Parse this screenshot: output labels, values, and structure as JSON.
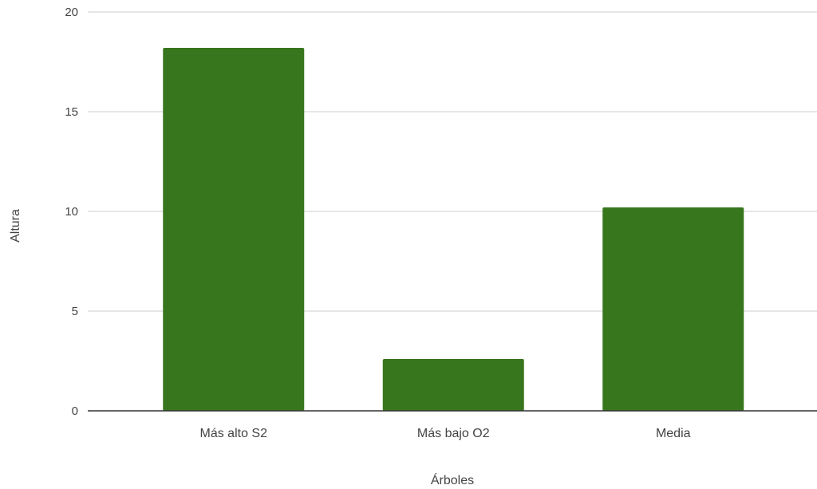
{
  "chart_data": {
    "type": "bar",
    "categories": [
      "Más alto S2",
      "Más bajo O2",
      "Media"
    ],
    "values": [
      18.2,
      2.6,
      10.2
    ],
    "title": "",
    "xlabel": "Árboles",
    "ylabel": "Altura",
    "ylim": [
      0,
      20
    ],
    "yticks": [
      "0",
      "5",
      "10",
      "15",
      "20"
    ],
    "grid": true,
    "legend": "none",
    "colors": {
      "bar": "#38761d",
      "grid": "#cccccc",
      "axis": "#333333"
    }
  }
}
